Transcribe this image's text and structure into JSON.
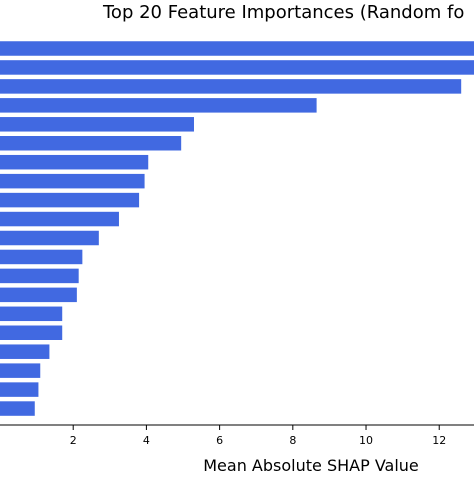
{
  "chart_data": {
    "type": "bar",
    "orientation": "horizontal",
    "title": "Top 20 Feature Importances (Random fo",
    "xlabel": "Mean Absolute SHAP Value",
    "ylabel": "",
    "xlim": [
      0,
      12.95
    ],
    "xticks": [
      2,
      4,
      6,
      8,
      10,
      12
    ],
    "xtick_labels": [
      "2",
      "4",
      "6",
      "8",
      "10",
      "12"
    ],
    "bar_color": "#4169e1",
    "grid": false,
    "values": [
      13.6,
      13.2,
      12.6,
      8.65,
      5.3,
      4.95,
      4.05,
      3.95,
      3.8,
      3.25,
      2.7,
      2.25,
      2.15,
      2.1,
      1.7,
      1.7,
      1.35,
      1.1,
      1.05,
      0.95
    ]
  }
}
